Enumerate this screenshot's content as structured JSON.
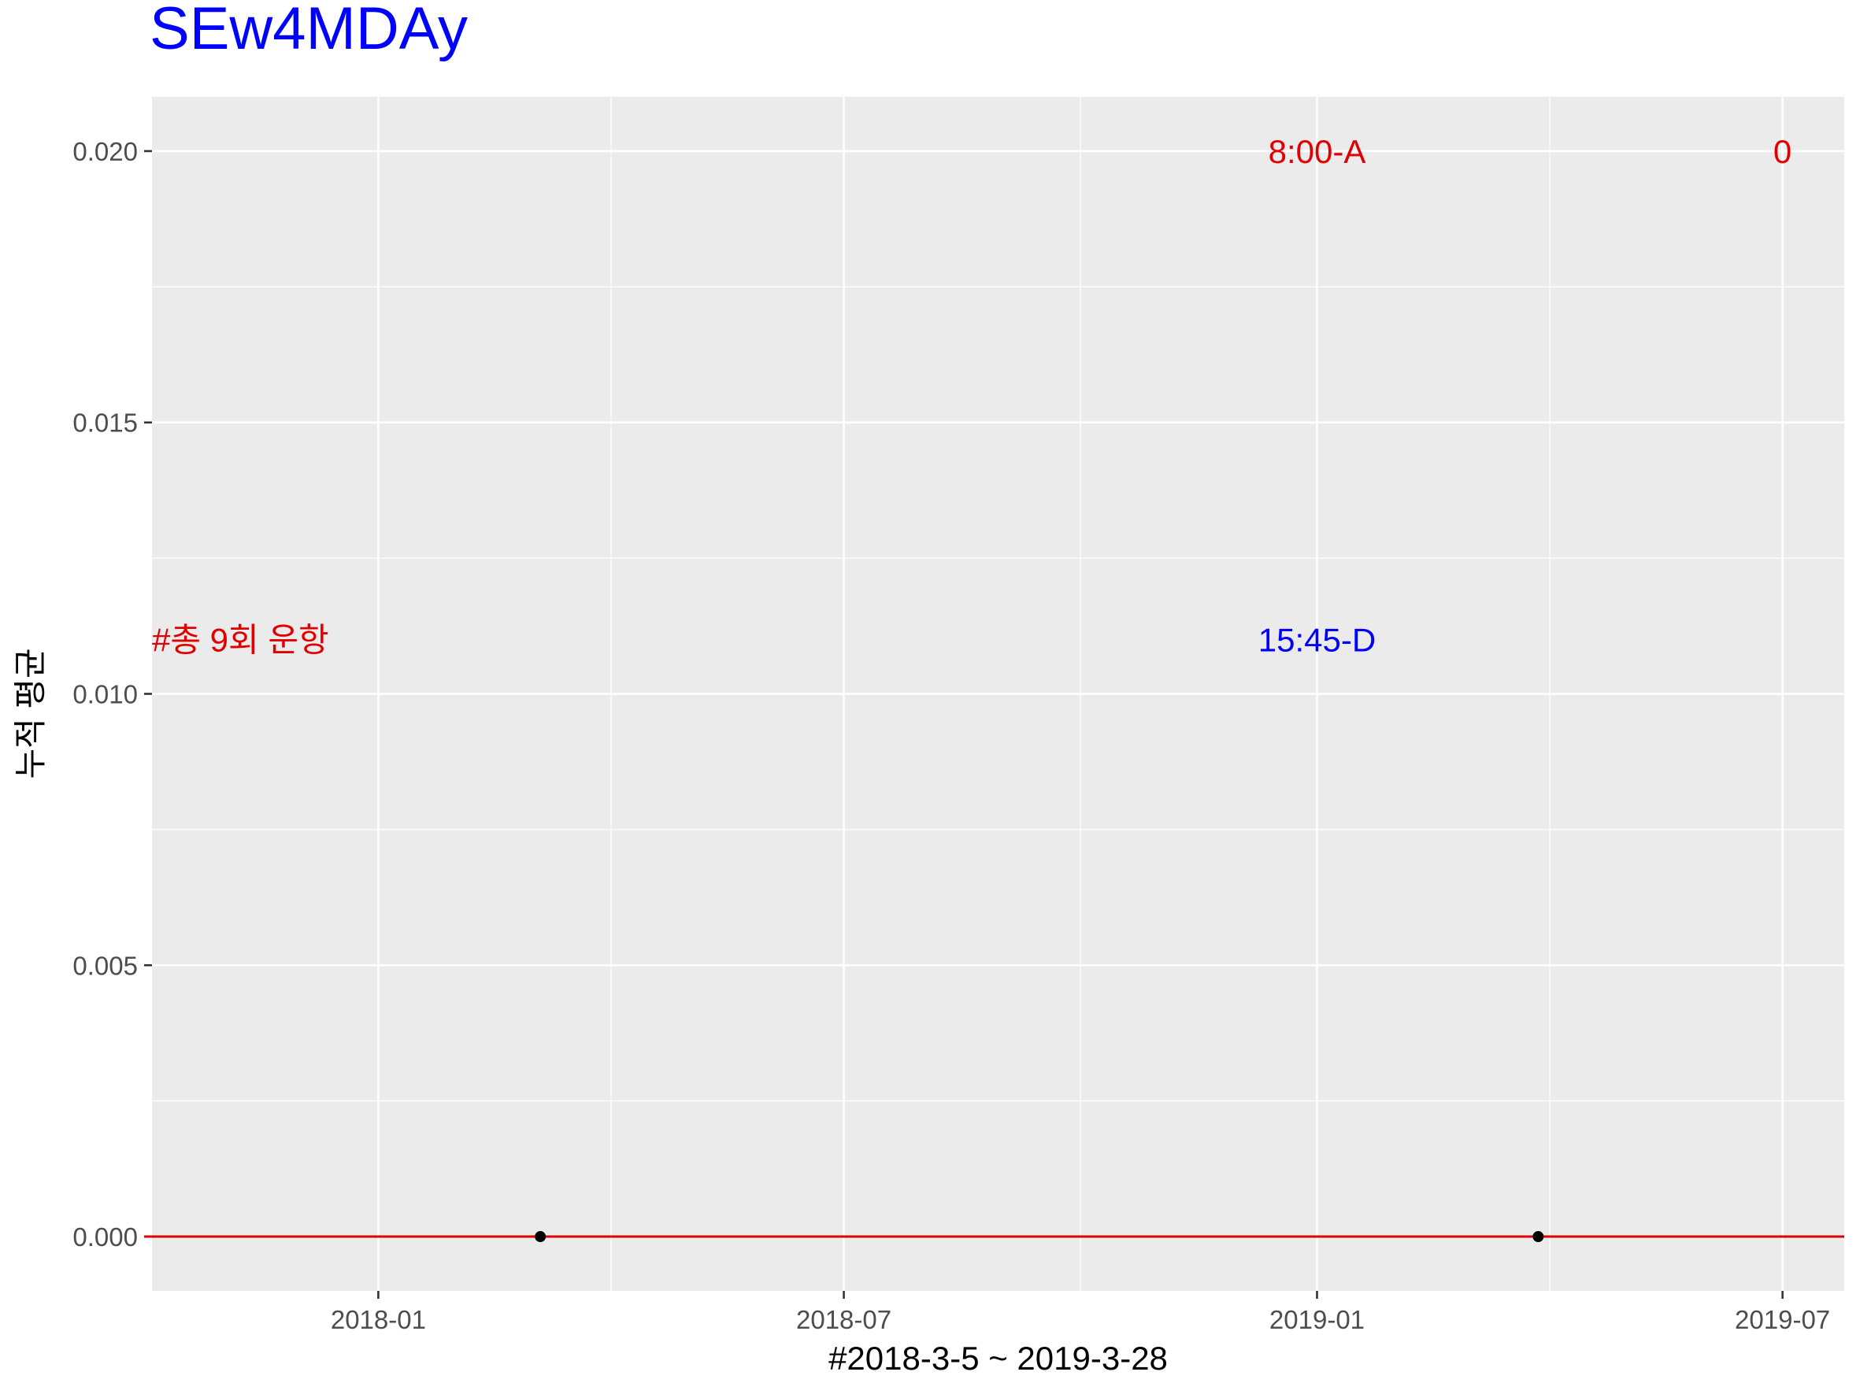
{
  "chart_data": {
    "type": "scatter",
    "title": "SEw4MDAy",
    "xlabel": "#2018-3-5 ~ 2019-3-28",
    "ylabel": "누적 평균",
    "xlim": [
      "2017-10-05",
      "2019-07-25"
    ],
    "ylim": [
      -0.001,
      0.021
    ],
    "x_ticks": [
      "2018-01-01",
      "2018-07-01",
      "2019-01-01",
      "2019-07-01"
    ],
    "x_tick_labels": [
      "2018-01",
      "2018-07",
      "2019-01",
      "2019-07"
    ],
    "y_ticks": [
      0,
      0.005,
      0.01,
      0.015,
      0.02
    ],
    "y_tick_labels": [
      "0.000",
      "0.005",
      "0.010",
      "0.015",
      "0.020"
    ],
    "grid": true,
    "points": [
      {
        "x": "2018-03-05",
        "y": 0
      },
      {
        "x": "2019-03-28",
        "y": 0
      }
    ],
    "hline": {
      "y": 0,
      "color": "#e00000"
    },
    "annotations": [
      {
        "text": "#총 9회 운항",
        "x": "2017-10-05",
        "y": 0.011,
        "color": "#e00000",
        "anchor": "start"
      },
      {
        "text": "15:45-D",
        "x": "2019-01-01",
        "y": 0.011,
        "color": "#0000ff",
        "anchor": "middle"
      },
      {
        "text": "8:00-A",
        "x": "2019-01-01",
        "y": 0.02,
        "color": "#e00000",
        "anchor": "middle"
      },
      {
        "text": "0",
        "x": "2019-07-01",
        "y": 0.02,
        "color": "#e00000",
        "anchor": "middle"
      }
    ],
    "colors": {
      "title": "#0000ff",
      "panel": "#ebebeb",
      "grid": "#ffffff",
      "points": "#000000"
    }
  }
}
